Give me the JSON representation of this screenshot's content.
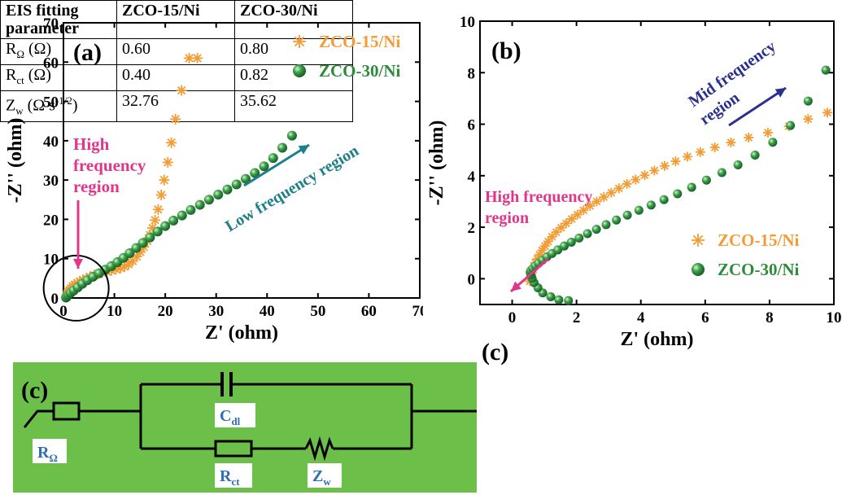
{
  "chart_data": [
    {
      "type": "scatter",
      "panel_label": "(a)",
      "xlabel": "Z' (ohm)",
      "ylabel": "-Z'' (ohm)",
      "xlim": [
        0,
        70
      ],
      "ylim": [
        0,
        70
      ],
      "xticks": [
        0,
        10,
        20,
        30,
        40,
        50,
        60,
        70
      ],
      "yticks": [
        0,
        10,
        20,
        30,
        40,
        50,
        60,
        70
      ],
      "legend_position": "top-right",
      "series": [
        {
          "name": "ZCO-15/Ni",
          "marker": "asterisk",
          "color": "#f39c34",
          "x": [
            0.6,
            0.7,
            0.8,
            1.0,
            1.2,
            1.5,
            1.8,
            2.2,
            2.7,
            3.2,
            3.8,
            4.5,
            5.2,
            6.0,
            6.8,
            7.6,
            8.5,
            9.4,
            10.3,
            11.2,
            12.0,
            12.8,
            13.6,
            14.4,
            15.1,
            15.8,
            16.5,
            17.0,
            17.5,
            18.0,
            18.6,
            19.2,
            19.8,
            20.5,
            21.2,
            22.0,
            23.2,
            24.7,
            26.3
          ],
          "y": [
            0.3,
            0.8,
            1.2,
            1.6,
            2.0,
            2.5,
            3.0,
            3.4,
            3.8,
            4.2,
            4.6,
            5.0,
            5.4,
            5.8,
            6.1,
            6.4,
            6.7,
            7.0,
            7.3,
            7.6,
            8.0,
            8.6,
            9.4,
            10.5,
            11.7,
            13.0,
            14.5,
            16.0,
            17.8,
            19.8,
            22.5,
            26.2,
            30.0,
            34.5,
            39.5,
            45.5,
            52.8,
            61.0,
            61.0
          ]
        },
        {
          "name": "ZCO-30/Ni",
          "marker": "sphere",
          "color": "#2e8b3a",
          "x": [
            0.5,
            0.7,
            1.0,
            1.4,
            2.0,
            2.8,
            3.7,
            4.7,
            5.8,
            7.0,
            8.2,
            9.4,
            10.6,
            11.8,
            13.0,
            14.3,
            15.6,
            17.0,
            18.5,
            20.0,
            21.6,
            23.3,
            25.0,
            26.8,
            28.6,
            30.4,
            32.2,
            34.0,
            35.8,
            37.6,
            39.4,
            41.2,
            43.0,
            44.9
          ],
          "y": [
            0.1,
            0.4,
            0.8,
            1.3,
            1.9,
            2.7,
            3.6,
            4.5,
            5.4,
            6.3,
            7.2,
            8.1,
            9.1,
            10.2,
            11.4,
            12.7,
            14.0,
            15.4,
            16.9,
            18.3,
            19.7,
            21.0,
            22.4,
            23.7,
            25.0,
            26.3,
            27.6,
            28.9,
            30.3,
            31.8,
            33.5,
            35.6,
            38.2,
            41.3
          ]
        }
      ],
      "annotations": [
        {
          "text_lines": [
            "High",
            "frequency",
            "region"
          ],
          "color": "#e0368c",
          "arrow": "down"
        },
        {
          "text": "Low frequency region",
          "color": "#1e7f8c",
          "arrow": "up-right"
        }
      ]
    },
    {
      "type": "scatter",
      "panel_label": "(b)",
      "xlabel": "Z' (ohm)",
      "ylabel": "-Z'' (ohm)",
      "xlim": [
        -1,
        10
      ],
      "ylim": [
        -1,
        10
      ],
      "xticks": [
        0,
        2,
        4,
        6,
        8,
        10
      ],
      "yticks": [
        0,
        2,
        4,
        6,
        8,
        10
      ],
      "legend_position": "bottom-right",
      "series": [
        {
          "name": "ZCO-15/Ni",
          "marker": "asterisk",
          "color": "#f39c34",
          "x": [
            0.55,
            0.56,
            0.58,
            0.6,
            0.62,
            0.65,
            0.68,
            0.72,
            0.78,
            0.85,
            0.93,
            1.02,
            1.12,
            1.24,
            1.37,
            1.52,
            1.68,
            1.85,
            2.03,
            2.22,
            2.42,
            2.63,
            2.85,
            3.08,
            3.32,
            3.57,
            3.84,
            4.12,
            4.42,
            4.74,
            5.08,
            5.45,
            5.85,
            6.3,
            6.8,
            7.35,
            7.95,
            8.6,
            9.2,
            9.8
          ],
          "y": [
            -0.1,
            0.0,
            0.08,
            0.16,
            0.25,
            0.36,
            0.48,
            0.62,
            0.77,
            0.93,
            1.1,
            1.27,
            1.45,
            1.63,
            1.81,
            1.98,
            2.15,
            2.32,
            2.49,
            2.66,
            2.83,
            3.0,
            3.17,
            3.34,
            3.51,
            3.68,
            3.85,
            4.02,
            4.2,
            4.38,
            4.56,
            4.74,
            4.92,
            5.1,
            5.29,
            5.48,
            5.67,
            5.92,
            6.2,
            6.45
          ]
        },
        {
          "name": "ZCO-30/Ni",
          "marker": "sphere",
          "color": "#2e8b3a",
          "x": [
            1.75,
            1.45,
            1.2,
            0.95,
            0.8,
            0.68,
            0.62,
            0.58,
            0.56,
            0.58,
            0.64,
            0.72,
            0.82,
            0.94,
            1.08,
            1.24,
            1.42,
            1.62,
            1.84,
            2.08,
            2.34,
            2.62,
            2.92,
            3.24,
            3.58,
            3.94,
            4.32,
            4.72,
            5.14,
            5.58,
            6.04,
            6.52,
            7.02,
            7.55,
            8.1,
            8.65,
            9.2,
            9.75
          ],
          "y": [
            -0.85,
            -0.82,
            -0.7,
            -0.55,
            -0.35,
            -0.15,
            0.02,
            0.15,
            0.25,
            0.32,
            0.4,
            0.5,
            0.6,
            0.72,
            0.85,
            0.98,
            1.12,
            1.27,
            1.42,
            1.58,
            1.75,
            1.92,
            2.1,
            2.28,
            2.47,
            2.66,
            2.86,
            3.07,
            3.3,
            3.55,
            3.83,
            4.12,
            4.42,
            4.8,
            5.3,
            5.95,
            6.9,
            8.1
          ]
        }
      ],
      "annotations": [
        {
          "text_lines": [
            "Mid frequency",
            "region"
          ],
          "color": "#2b2f8f",
          "arrow": "up-right"
        },
        {
          "text_lines": [
            "High frequency",
            "region"
          ],
          "color": "#e0368c",
          "arrow": "down-left"
        }
      ]
    },
    {
      "type": "table",
      "panel_label": "(c)",
      "columns": [
        "EIS fitting parameter",
        "ZCO-15/Ni",
        "ZCO-30/Ni"
      ],
      "rows": [
        {
          "param": "R",
          "sub": "Ω",
          "unit": " (Ω)",
          "v1": "0.60",
          "v2": "0.80"
        },
        {
          "param": "R",
          "sub": "ct",
          "unit": " (Ω)",
          "v1": "0.40",
          "v2": "0.82"
        },
        {
          "param": "Z",
          "sub": "w",
          "unit": " (Ω s",
          "sup": "-1/2",
          "unit_end": ")",
          "v1": "32.76",
          "v2": "35.62"
        }
      ]
    }
  ],
  "circuit": {
    "panel_label": "(c)",
    "background": "#6cc04a",
    "labels": {
      "r_omega": {
        "main": "R",
        "sub": "Ω"
      },
      "c_dl": {
        "main": "C",
        "sub": "dl"
      },
      "r_ct": {
        "main": "R",
        "sub": "ct"
      },
      "z_w": {
        "main": "Z",
        "sub": "w"
      }
    }
  }
}
